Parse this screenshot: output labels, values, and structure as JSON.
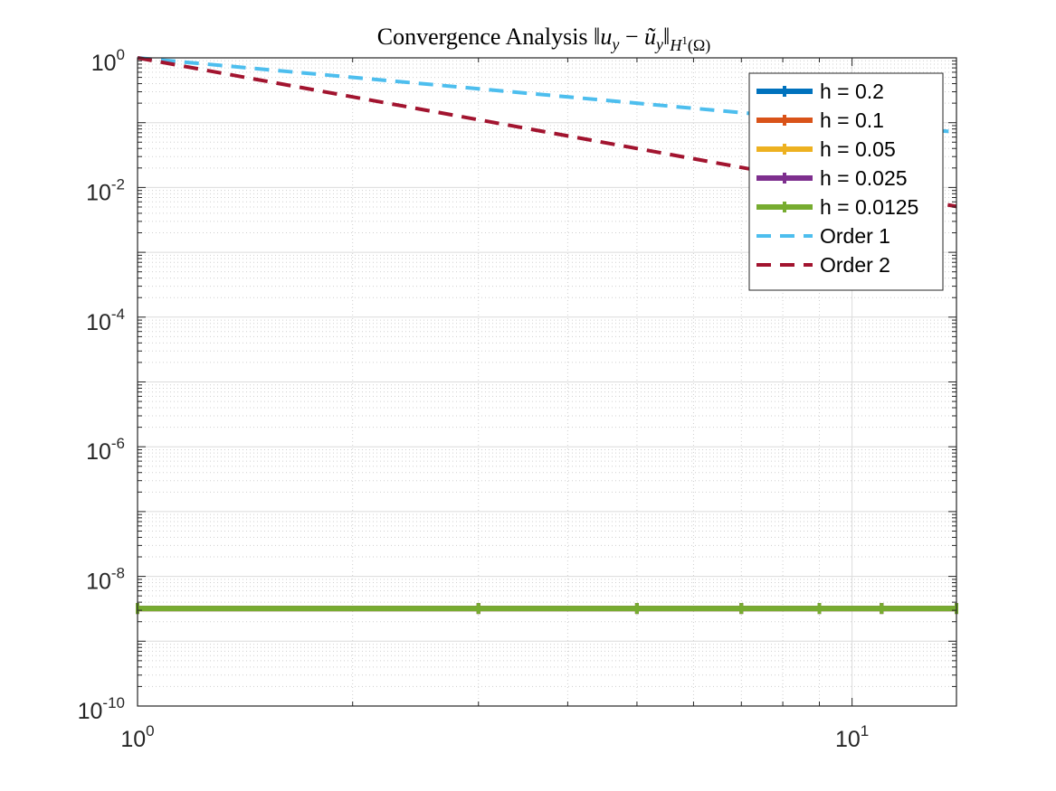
{
  "chart_data": {
    "type": "line",
    "title": {
      "prefix": "Convergence Analysis ",
      "norm_open": "‖",
      "u": "u",
      "u_sub": "y",
      "minus": " − ",
      "u_tilde": "ũ",
      "u_tilde_sub": "y",
      "norm_close": "‖",
      "space": "H",
      "space_sup": "1",
      "space_domain": "(Ω)"
    },
    "xlabel": "",
    "ylabel": "",
    "x_scale": "log",
    "y_scale": "log",
    "xlim": [
      1,
      14
    ],
    "ylim": [
      1e-10,
      1
    ],
    "grid": true,
    "minor_grid": true,
    "legend_position": "top-right",
    "x_ticks": [
      {
        "value": 1,
        "base": "10",
        "exp": "0"
      },
      {
        "value": 10,
        "base": "10",
        "exp": "1"
      }
    ],
    "y_ticks": [
      {
        "value": 1,
        "base": "10",
        "exp": "0"
      },
      {
        "value": 0.01,
        "base": "10",
        "exp": "-2"
      },
      {
        "value": 0.0001,
        "base": "10",
        "exp": "-4"
      },
      {
        "value": 1e-06,
        "base": "10",
        "exp": "-6"
      },
      {
        "value": 1e-08,
        "base": "10",
        "exp": "-8"
      },
      {
        "value": 1e-10,
        "base": "10",
        "exp": "-10"
      }
    ],
    "series": [
      {
        "name": "h = 0.2",
        "style": "solid-marker",
        "color": "#0072BD",
        "x": [
          1,
          3,
          5,
          7,
          9,
          11,
          14
        ],
        "y": [
          3.2e-09,
          3.2e-09,
          3.2e-09,
          3.2e-09,
          3.2e-09,
          3.2e-09,
          3.2e-09
        ]
      },
      {
        "name": "h = 0.1",
        "style": "solid-marker",
        "color": "#D95319",
        "x": [
          1,
          3,
          5,
          7,
          9,
          11,
          14
        ],
        "y": [
          3.2e-09,
          3.2e-09,
          3.2e-09,
          3.2e-09,
          3.2e-09,
          3.2e-09,
          3.2e-09
        ]
      },
      {
        "name": "h = 0.05",
        "style": "solid-marker",
        "color": "#EDB120",
        "x": [
          1,
          3,
          5,
          7,
          9,
          11,
          14
        ],
        "y": [
          3.2e-09,
          3.2e-09,
          3.2e-09,
          3.2e-09,
          3.2e-09,
          3.2e-09,
          3.2e-09
        ]
      },
      {
        "name": "h = 0.025",
        "style": "solid-marker",
        "color": "#7E2F8E",
        "x": [
          1,
          3,
          5,
          7,
          9,
          11,
          14
        ],
        "y": [
          3.2e-09,
          3.2e-09,
          3.2e-09,
          3.2e-09,
          3.2e-09,
          3.2e-09,
          3.2e-09
        ]
      },
      {
        "name": "h = 0.0125",
        "style": "solid-marker",
        "color": "#77AC30",
        "x": [
          1,
          3,
          5,
          7,
          9,
          11,
          14
        ],
        "y": [
          3.2e-09,
          3.2e-09,
          3.2e-09,
          3.2e-09,
          3.2e-09,
          3.2e-09,
          3.2e-09
        ]
      },
      {
        "name": "Order 1",
        "style": "dashed",
        "color": "#4DBEEE",
        "x": [
          1,
          14
        ],
        "y": [
          1,
          0.0714
        ]
      },
      {
        "name": "Order 2",
        "style": "dashed",
        "color": "#A2142F",
        "x": [
          1,
          14
        ],
        "y": [
          1,
          0.0051
        ]
      }
    ]
  }
}
